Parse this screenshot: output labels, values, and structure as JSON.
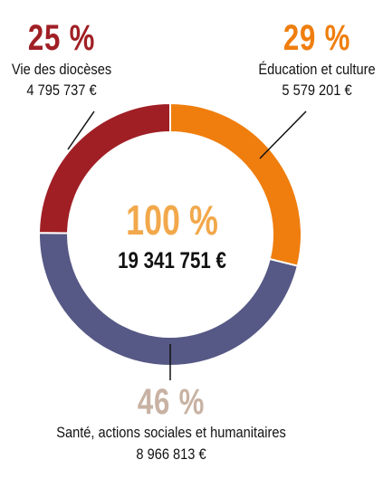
{
  "chart_data": {
    "type": "pie",
    "style": "donut",
    "center": {
      "percent": "100 %",
      "amount": "19 341 751 €",
      "color": "#F2A84B"
    },
    "segments": [
      {
        "name": "Vie des diocèses",
        "percent_label": "25 %",
        "amount": "4 795 737 €",
        "value": 4795737,
        "color": "#A01F25"
      },
      {
        "name": "Éducation et culture",
        "percent_label": "29 %",
        "amount": "5 579 201 €",
        "value": 5579201,
        "color": "#EF7E0E"
      },
      {
        "name": "Santé, actions sociales et humanitaires",
        "percent_label": "46 %",
        "amount": "8 966 813 €",
        "value": 8966813,
        "color": "#565985",
        "label_color": "#C8B2A3"
      }
    ]
  }
}
